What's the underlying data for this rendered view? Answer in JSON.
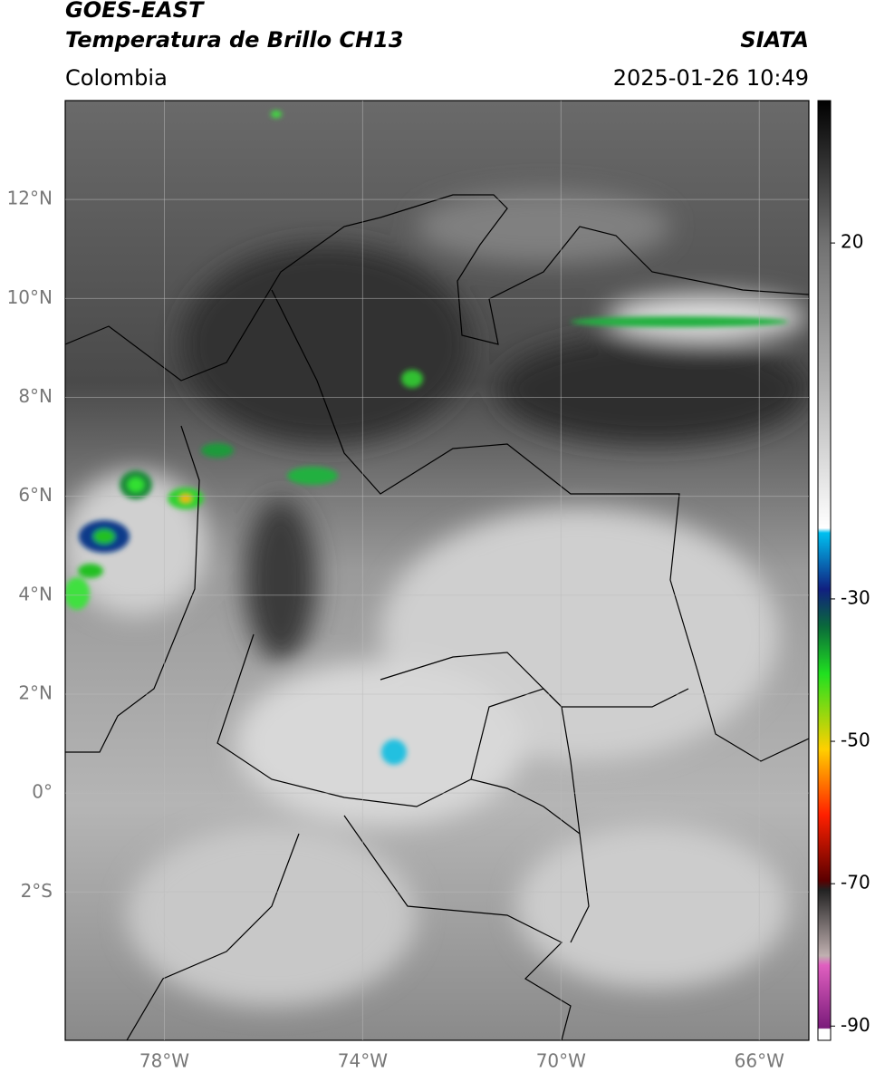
{
  "header": {
    "title": "GOES-EAST",
    "subtitle": "Temperatura de Brillo CH13",
    "source": "SIATA",
    "region": "Colombia",
    "datetime": "2025-01-26 10:49"
  },
  "map": {
    "lon_range": [
      -80,
      -65
    ],
    "lat_range": [
      -5,
      14
    ],
    "lon_ticks": [
      {
        "value": -78,
        "label": "78°W"
      },
      {
        "value": -74,
        "label": "74°W"
      },
      {
        "value": -70,
        "label": "70°W"
      },
      {
        "value": -66,
        "label": "66°W"
      }
    ],
    "lat_ticks": [
      {
        "value": 12,
        "label": "12°N"
      },
      {
        "value": 10,
        "label": "10°N"
      },
      {
        "value": 8,
        "label": "8°N"
      },
      {
        "value": 6,
        "label": "6°N"
      },
      {
        "value": 4,
        "label": "4°N"
      },
      {
        "value": 2,
        "label": "2°N"
      },
      {
        "value": 0,
        "label": "0°"
      },
      {
        "value": -2,
        "label": "2°S"
      }
    ]
  },
  "colorbar": {
    "range": [
      -92,
      40
    ],
    "ticks": [
      20,
      -30,
      -50,
      -70,
      -90
    ]
  }
}
